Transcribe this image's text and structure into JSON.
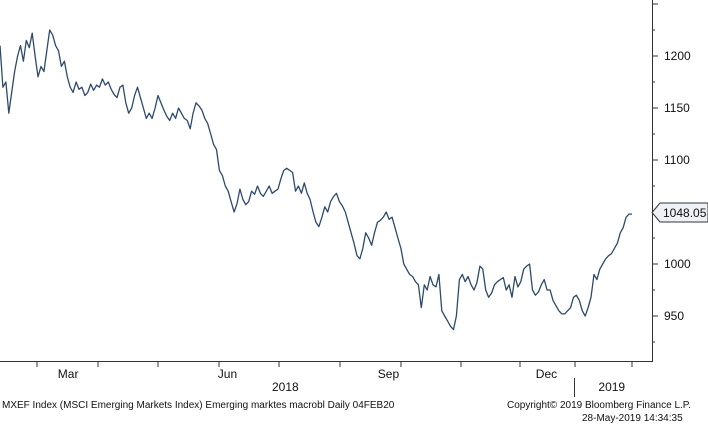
{
  "chart_data": {
    "type": "line",
    "title": "",
    "xlabel": "",
    "ylabel": "",
    "ylim": [
      910,
      1245
    ],
    "y_ticks": [
      950,
      1000,
      1050,
      1100,
      1150,
      1200
    ],
    "y_tick_labels": [
      "950",
      "1000",
      "1050",
      "1100",
      "1150",
      "1200"
    ],
    "x_tick_labels": [
      "Mar",
      "Jun",
      "Sep",
      "Dec",
      "2019"
    ],
    "year_label": "2018",
    "last_value_label": "1048.05",
    "line_color": "#2d4a6b",
    "grid": false,
    "series": [
      {
        "values": [
          1210,
          1170,
          1175,
          1145,
          1165,
          1185,
          1200,
          1210,
          1195,
          1215,
          1208,
          1222,
          1200,
          1180,
          1190,
          1185,
          1205,
          1225,
          1220,
          1210,
          1205,
          1190,
          1195,
          1180,
          1170,
          1165,
          1175,
          1168,
          1170,
          1162,
          1165,
          1173,
          1167,
          1172,
          1170,
          1178,
          1172,
          1175,
          1168,
          1163,
          1160,
          1170,
          1172,
          1155,
          1145,
          1150,
          1162,
          1170,
          1160,
          1150,
          1140,
          1145,
          1140,
          1150,
          1162,
          1155,
          1148,
          1142,
          1138,
          1145,
          1140,
          1150,
          1145,
          1140,
          1138,
          1130,
          1145,
          1155,
          1152,
          1148,
          1140,
          1135,
          1125,
          1115,
          1110,
          1090,
          1085,
          1075,
          1070,
          1060,
          1050,
          1058,
          1072,
          1062,
          1057,
          1060,
          1070,
          1067,
          1075,
          1068,
          1065,
          1070,
          1075,
          1068,
          1070,
          1072,
          1082,
          1090,
          1092,
          1090,
          1088,
          1070,
          1075,
          1068,
          1078,
          1068,
          1062,
          1050,
          1040,
          1036,
          1045,
          1055,
          1050,
          1060,
          1065,
          1068,
          1060,
          1056,
          1050,
          1040,
          1030,
          1020,
          1008,
          1005,
          1015,
          1030,
          1025,
          1018,
          1030,
          1040,
          1042,
          1045,
          1050,
          1043,
          1045,
          1035,
          1025,
          1015,
          1000,
          995,
          990,
          988,
          983,
          980,
          958,
          980,
          975,
          988,
          980,
          978,
          990,
          955,
          950,
          945,
          940,
          937,
          950,
          985,
          990,
          983,
          988,
          980,
          975,
          982,
          998,
          995,
          975,
          968,
          972,
          980,
          983,
          985,
          987,
          975,
          980,
          968,
          988,
          978,
          983,
          995,
          998,
          1000,
          975,
          970,
          973,
          980,
          985,
          975,
          975,
          965,
          960,
          955,
          952,
          952,
          955,
          958,
          968,
          970,
          965,
          955,
          950,
          958,
          968,
          990,
          985,
          995,
          1000,
          1005,
          1008,
          1010,
          1015,
          1020,
          1030,
          1035,
          1045,
          1048,
          1048.05
        ]
      }
    ]
  },
  "footer": {
    "left": "MXEF Index (MSCI Emerging Markets Index) Emerging marktes macrobl  Daily 04FEB20",
    "copyright": "Copyright© 2019 Bloomberg Finance L.P.",
    "timestamp": "28-May-2019 14:34:35"
  }
}
